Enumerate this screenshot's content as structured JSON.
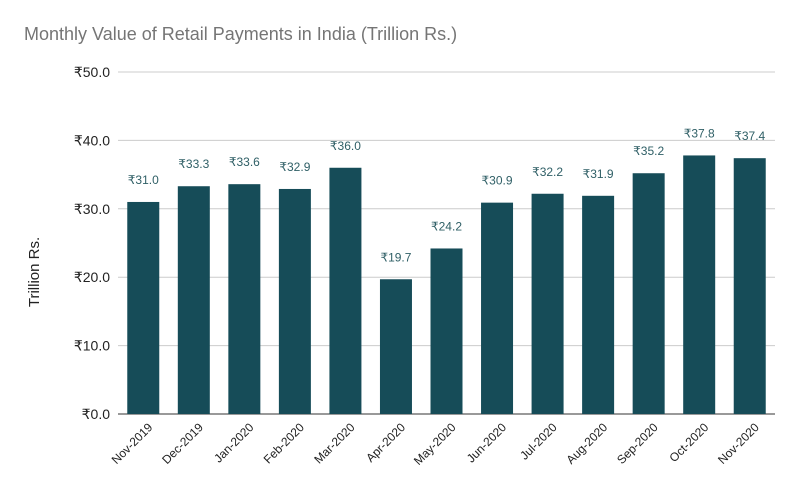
{
  "chart_data": {
    "type": "bar",
    "title": "Monthly Value of Retail Payments in India (Trillion Rs.)",
    "xlabel": "",
    "ylabel": "Trillion Rs.",
    "ylim": [
      0,
      50
    ],
    "yticks": [
      0,
      10,
      20,
      30,
      40,
      50
    ],
    "ytick_labels": [
      "₹0.0",
      "₹10.0",
      "₹20.0",
      "₹30.0",
      "₹40.0",
      "₹50.0"
    ],
    "categories": [
      "Nov-2019",
      "Dec-2019",
      "Jan-2020",
      "Feb-2020",
      "Mar-2020",
      "Apr-2020",
      "May-2020",
      "Jun-2020",
      "Jul-2020",
      "Aug-2020",
      "Sep-2020",
      "Oct-2020",
      "Nov-2020"
    ],
    "values": [
      31.0,
      33.3,
      33.6,
      32.9,
      36.0,
      19.7,
      24.2,
      30.9,
      32.2,
      31.9,
      35.2,
      37.8,
      37.4
    ],
    "data_labels": [
      "₹31.0",
      "₹33.3",
      "₹33.6",
      "₹32.9",
      "₹36.0",
      "₹19.7",
      "₹24.2",
      "₹30.9",
      "₹32.2",
      "₹31.9",
      "₹35.2",
      "₹37.8",
      "₹37.4"
    ],
    "grid": true,
    "legend": "none",
    "colors": {
      "bar": "#164c58",
      "title": "#757575",
      "label": "#2f5f66",
      "axis_text": "#222222",
      "grid": "#cccccc",
      "baseline": "#333333"
    }
  }
}
